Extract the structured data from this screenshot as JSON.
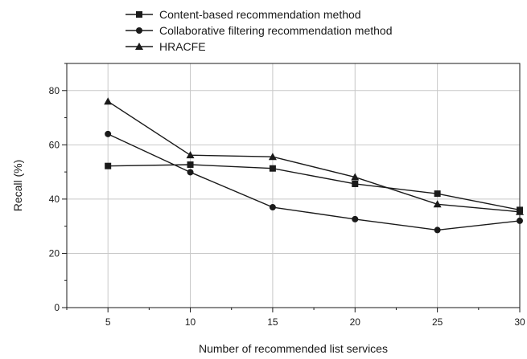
{
  "chart_data": {
    "type": "line",
    "title": "",
    "xlabel": "Number of recommended list services",
    "ylabel": "Recall (%)",
    "x": [
      5,
      10,
      15,
      20,
      25,
      30
    ],
    "xlim": [
      2.5,
      30
    ],
    "ylim": [
      0,
      90
    ],
    "xticks": [
      5,
      10,
      15,
      20,
      25,
      30
    ],
    "yticks": [
      0,
      20,
      40,
      60,
      80
    ],
    "grid": true,
    "legend_position": "top",
    "series": [
      {
        "name": "Content-based recommendation method",
        "marker": "square",
        "values": [
          52.2,
          52.7,
          51.3,
          45.6,
          42.0,
          36.0
        ]
      },
      {
        "name": "Collaborative filtering recommendation method",
        "marker": "circle",
        "values": [
          64.0,
          49.9,
          37.0,
          32.6,
          28.6,
          32.0
        ]
      },
      {
        "name": "HRACFE",
        "marker": "triangle",
        "values": [
          76.0,
          56.2,
          55.6,
          48.1,
          38.1,
          35.3
        ]
      }
    ],
    "line_color": "#1a1a1a",
    "grid_color": "#c8c8c8"
  }
}
